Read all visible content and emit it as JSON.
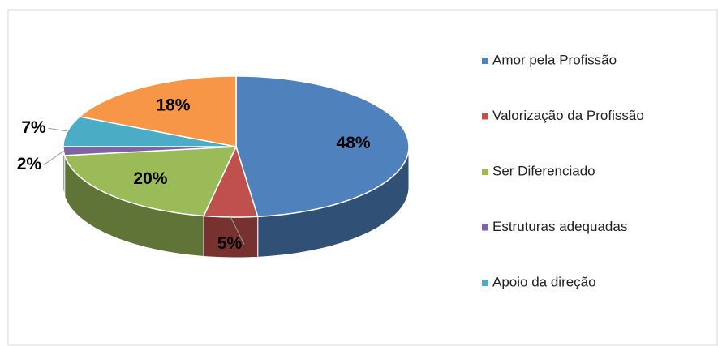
{
  "chart_data": {
    "type": "pie3d",
    "categories": [
      "Amor pela Profissão",
      "Valorização da Profissão",
      "Ser Diferenciado",
      "Estruturas adequadas",
      "Apoio da direção",
      null
    ],
    "values": [
      48,
      5,
      20,
      2,
      7,
      18
    ],
    "value_labels": [
      "48%",
      "5%",
      "20%",
      "2%",
      "7%",
      "18%"
    ],
    "colors": [
      "#4f81bd",
      "#c0504d",
      "#9bbb59",
      "#8064a2",
      "#4bacc6",
      "#f79646"
    ],
    "legend": "right"
  }
}
